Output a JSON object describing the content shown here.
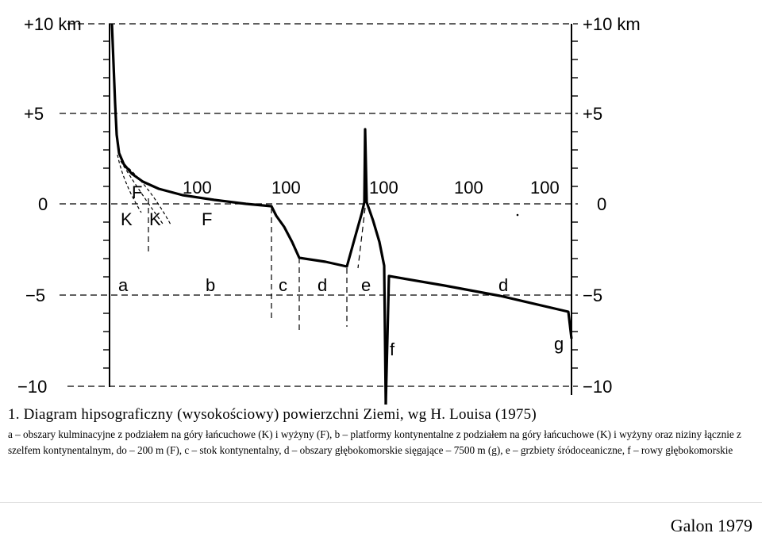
{
  "diagram": {
    "y_labels_left": [
      "+10 km",
      "+5",
      "0",
      "−5",
      "−10"
    ],
    "y_labels_right": [
      "+10 km",
      "+5",
      "0",
      "−5",
      "−10"
    ],
    "scale_labels": [
      "100",
      "100",
      "100",
      "100",
      "100"
    ],
    "zone_labels": [
      "a",
      "b",
      "c",
      "d",
      "e",
      "d"
    ],
    "point_labels": [
      "F",
      "K",
      "K",
      "F",
      "f",
      "g"
    ]
  },
  "caption": {
    "title": "1. Diagram hipsograficzny (wysokościowy) powierzchni Ziemi, wg H. Louisa (1975)",
    "body": "a – obszary kulminacyjne z podziałem na góry łańcuchowe (K) i wyżyny (F), b – platformy kontynentalne z podziałem na góry łańcuchowe (K) i wyżyny oraz niziny łącznie z szelfem kontynentalnym, do – 200 m (F), c – stok kontynentalny, d – obszary głębokomorskie sięgające – 7500 m (g), e – grzbiety śródoceaniczne, f – rowy głębokomorskie"
  },
  "credit": "Galon 1979"
}
